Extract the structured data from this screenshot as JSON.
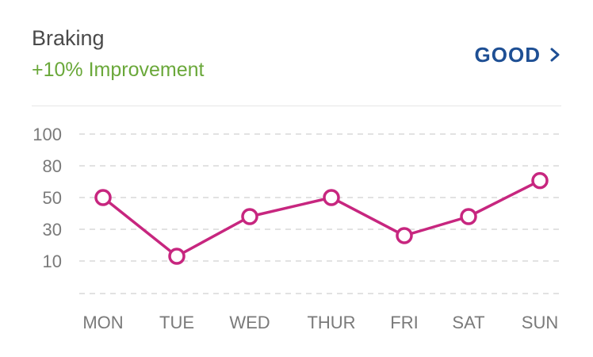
{
  "header": {
    "title": "Braking",
    "subtitle": "+10% Improvement",
    "rating_label": "GOOD",
    "icon": "chevron-right-icon"
  },
  "colors": {
    "title": "#4a4a4a",
    "subtitle": "#6aa83a",
    "rating": "#1e4f94",
    "series": "#c7267f",
    "grid": "#d9d9d9",
    "tick": "#7a7a7a"
  },
  "chart_data": {
    "type": "line",
    "title": "",
    "xlabel": "",
    "ylabel": "",
    "categories": [
      "MON",
      "TUE",
      "WED",
      "THUR",
      "FRI",
      "SAT",
      "SUN"
    ],
    "y_ticks": [
      "100",
      "80",
      "50",
      "30",
      "10"
    ],
    "series": [
      {
        "values": [
          50,
          13,
          38,
          50,
          26,
          38,
          66
        ]
      }
    ],
    "grid": true,
    "grid_style": "dashed",
    "legend": "none"
  }
}
